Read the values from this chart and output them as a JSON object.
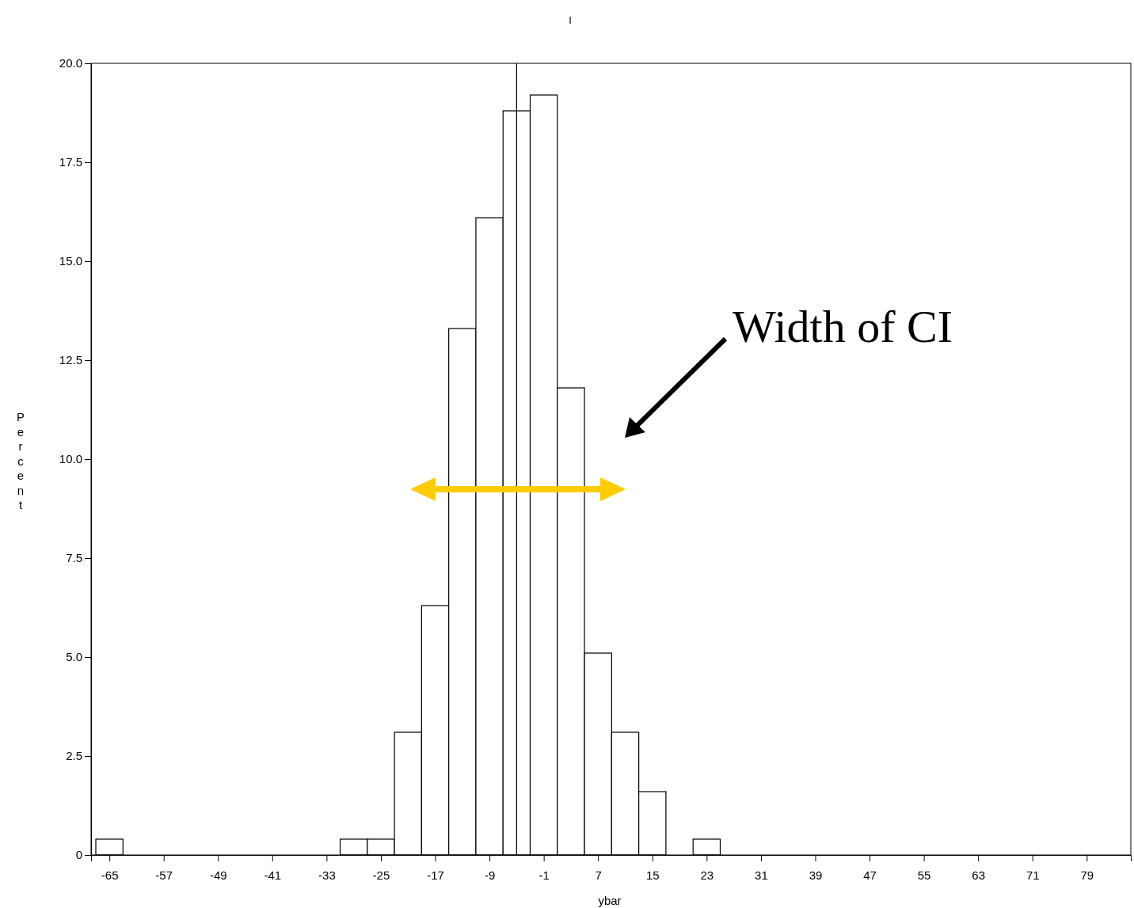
{
  "chart_data": {
    "type": "histogram",
    "title": "I",
    "xlabel": "ybar",
    "ylabel": "Percent",
    "bins": [
      -67,
      -63,
      -59,
      -55,
      -51,
      -47,
      -43,
      -39,
      -35,
      -31,
      -27,
      -23,
      -19,
      -15,
      -11,
      -7,
      -3,
      1,
      5,
      9,
      13,
      17,
      21,
      25
    ],
    "values": [
      0.4,
      0,
      0,
      0,
      0,
      0,
      0,
      0,
      0,
      0.4,
      0.4,
      3.1,
      6.3,
      13.3,
      16.1,
      18.8,
      19.2,
      11.8,
      5.1,
      3.1,
      1.6,
      0,
      0.4
    ],
    "color": "#ffffff",
    "xlim": [
      -67.7,
      85.5
    ],
    "xticks": [
      -65,
      -57,
      -49,
      -41,
      -33,
      -25,
      -17,
      -9,
      -1,
      7,
      15,
      23,
      31,
      39,
      47,
      55,
      63,
      71,
      79
    ],
    "ylim": [
      0,
      20
    ],
    "yticks": [
      0,
      {
        "value": 2.5,
        "label": "2.5"
      },
      {
        "value": 5,
        "label": "5.0"
      },
      {
        "value": 7.5,
        "label": "7.5"
      },
      {
        "value": 10,
        "label": "10.0"
      },
      {
        "value": 12.5,
        "label": "12.5"
      },
      {
        "value": 15,
        "label": "15.0"
      },
      {
        "value": 17.5,
        "label": "17.5"
      },
      {
        "value": 20,
        "label": "20.0"
      }
    ],
    "ref_lines": [
      {
        "axis": "x",
        "value": -5,
        "color": "#000000"
      }
    ],
    "annotations": [
      "Width of CI"
    ],
    "grid": false
  }
}
